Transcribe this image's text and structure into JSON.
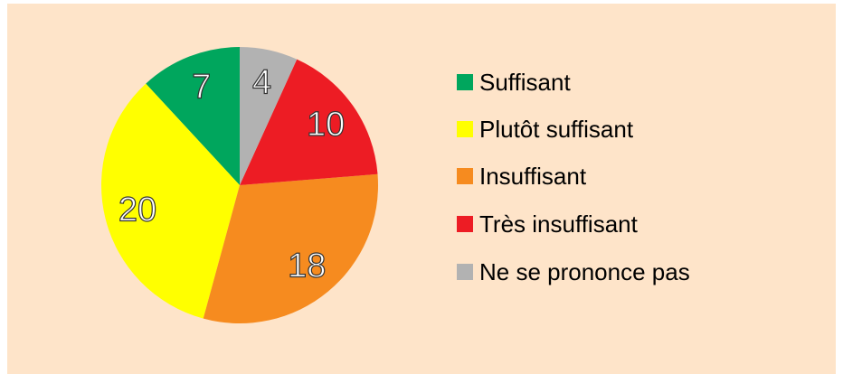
{
  "chart_data": {
    "type": "pie",
    "categories": [
      "Suffisant",
      "Plutôt suffisant",
      "Insuffisant",
      "Très insuffisant",
      "Ne se prononce pas"
    ],
    "values": [
      7,
      20,
      18,
      10,
      4
    ],
    "colors": [
      "#00a65d",
      "#ffff00",
      "#f68b1f",
      "#ed1c24",
      "#b2b2b2"
    ],
    "legend": "right"
  }
}
